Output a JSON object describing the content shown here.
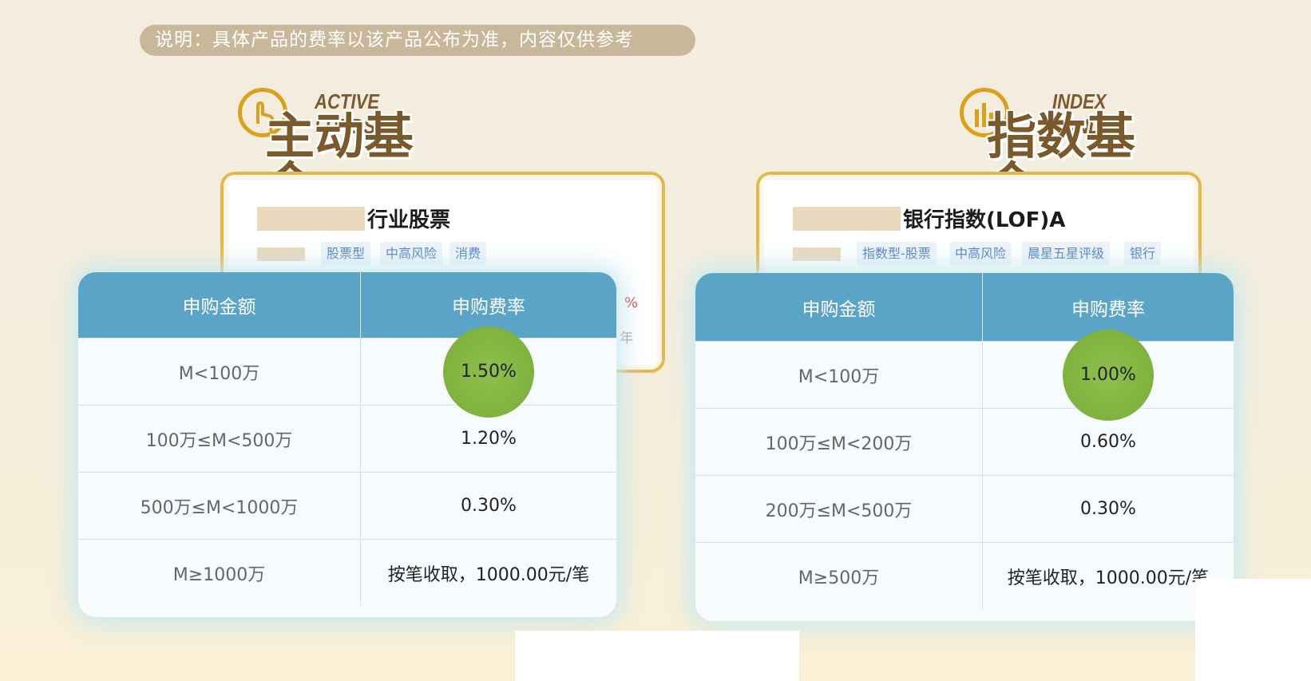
{
  "note": "说明：具体产品的费率以该产品公布为准，内容仅供参考",
  "active": {
    "heading_en": "ACTIVE FUNDS",
    "heading_zh": "主动基金",
    "fund_name": "行业股票",
    "tags": [
      "股票型",
      "中高风险",
      "消费"
    ],
    "peek_rate": "%",
    "peek_year": "年",
    "table": {
      "headers": [
        "申购金额",
        "申购费率"
      ],
      "rows": [
        {
          "amount": "M<100万",
          "rate": "1.50%"
        },
        {
          "amount": "100万≤M<500万",
          "rate": "1.20%"
        },
        {
          "amount": "500万≤M<1000万",
          "rate": "0.30%"
        },
        {
          "amount": "M≥1000万",
          "rate": "按笔收取，1000.00元/笔"
        }
      ]
    }
  },
  "index": {
    "heading_en": "INDEX FUNDS",
    "heading_zh": "指数基金",
    "fund_name": "银行指数(LOF)A",
    "tags": [
      "指数型-股票",
      "中高风险",
      "晨星五星评级",
      "银行"
    ],
    "table": {
      "headers": [
        "申购金额",
        "申购费率"
      ],
      "rows": [
        {
          "amount": "M<100万",
          "rate": "1.00%"
        },
        {
          "amount": "100万≤M<200万",
          "rate": "0.60%"
        },
        {
          "amount": "200万≤M<500万",
          "rate": "0.30%"
        },
        {
          "amount": "M≥500万",
          "rate": "按笔收取，1000.00元/笔"
        }
      ]
    }
  },
  "colors": {
    "header_blue": "#5aa4c8",
    "highlight_green": "#7fb23f",
    "gold": "#e3b84d",
    "tag_blue": "#4e7fc0"
  }
}
